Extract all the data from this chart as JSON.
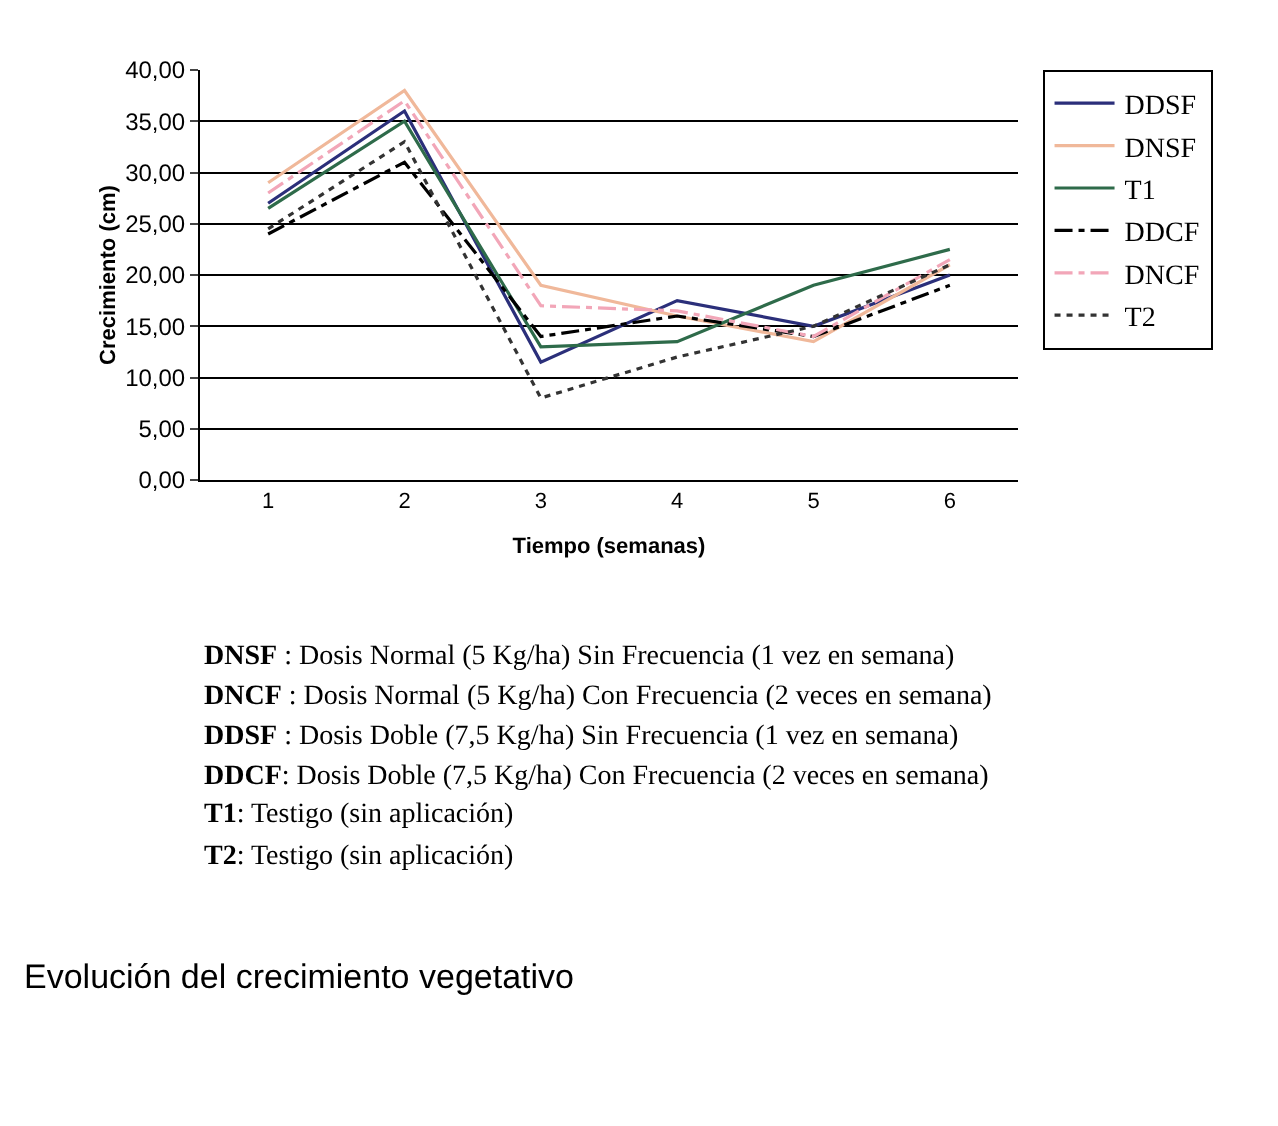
{
  "chart_data": {
    "type": "line",
    "xlabel": "Tiempo (semanas)",
    "ylabel": "Crecimiento (cm)",
    "categories": [
      "1",
      "2",
      "3",
      "4",
      "5",
      "6"
    ],
    "series": [
      {
        "name": "DDSF",
        "color": "#2b2f7a",
        "line_style": "solid",
        "values": [
          27,
          36,
          11.5,
          17.5,
          15,
          20
        ]
      },
      {
        "name": "DNSF",
        "color": "#f0b89a",
        "line_style": "solid",
        "values": [
          29,
          38,
          19,
          16,
          13.5,
          21
        ]
      },
      {
        "name": "T1",
        "color": "#2e6b4a",
        "line_style": "solid",
        "values": [
          26.5,
          35,
          13,
          13.5,
          19,
          22.5
        ]
      },
      {
        "name": "DDCF",
        "color": "#000000",
        "line_style": "dashed",
        "values": [
          24,
          31,
          14,
          16,
          14,
          19
        ]
      },
      {
        "name": "DNCF",
        "color": "#f2a6b8",
        "line_style": "dashed",
        "values": [
          28,
          37,
          17,
          16.5,
          14,
          21.5
        ]
      },
      {
        "name": "T2",
        "color": "#333333",
        "line_style": "dotted",
        "values": [
          24.5,
          33,
          8,
          12,
          15,
          21
        ]
      }
    ],
    "ylim": [
      0,
      40
    ],
    "yticks": [
      {
        "value": 0,
        "label": "0,00"
      },
      {
        "value": 5,
        "label": "5,00"
      },
      {
        "value": 10,
        "label": "10,00"
      },
      {
        "value": 15,
        "label": "15,00"
      },
      {
        "value": 20,
        "label": "20,00"
      },
      {
        "value": 25,
        "label": "25,00"
      },
      {
        "value": 30,
        "label": "30,00"
      },
      {
        "value": 35,
        "label": "35,00"
      },
      {
        "value": 40,
        "label": "40,00"
      }
    ],
    "grid": "y",
    "legend": "right",
    "marker": "none",
    "annotations": [
      "DNSF : Dosis Normal (5 Kg/ha) Sin Frecuencia (1 vez en semana)",
      "DNCF : Dosis Normal (5 Kg/ha) Con Frecuencia (2 veces en semana)",
      "DDSF : Dosis Doble (7,5 Kg/ha) Sin Frecuencia (1 vez en semana)",
      "DDCF: Dosis Doble (7,5 Kg/ha) Con Frecuencia (2 veces en semana)",
      "T1: Testigo (sin aplicación)",
      "T2: Testigo (sin aplicación)",
      "Evolución del crecimiento vegetativo"
    ]
  }
}
